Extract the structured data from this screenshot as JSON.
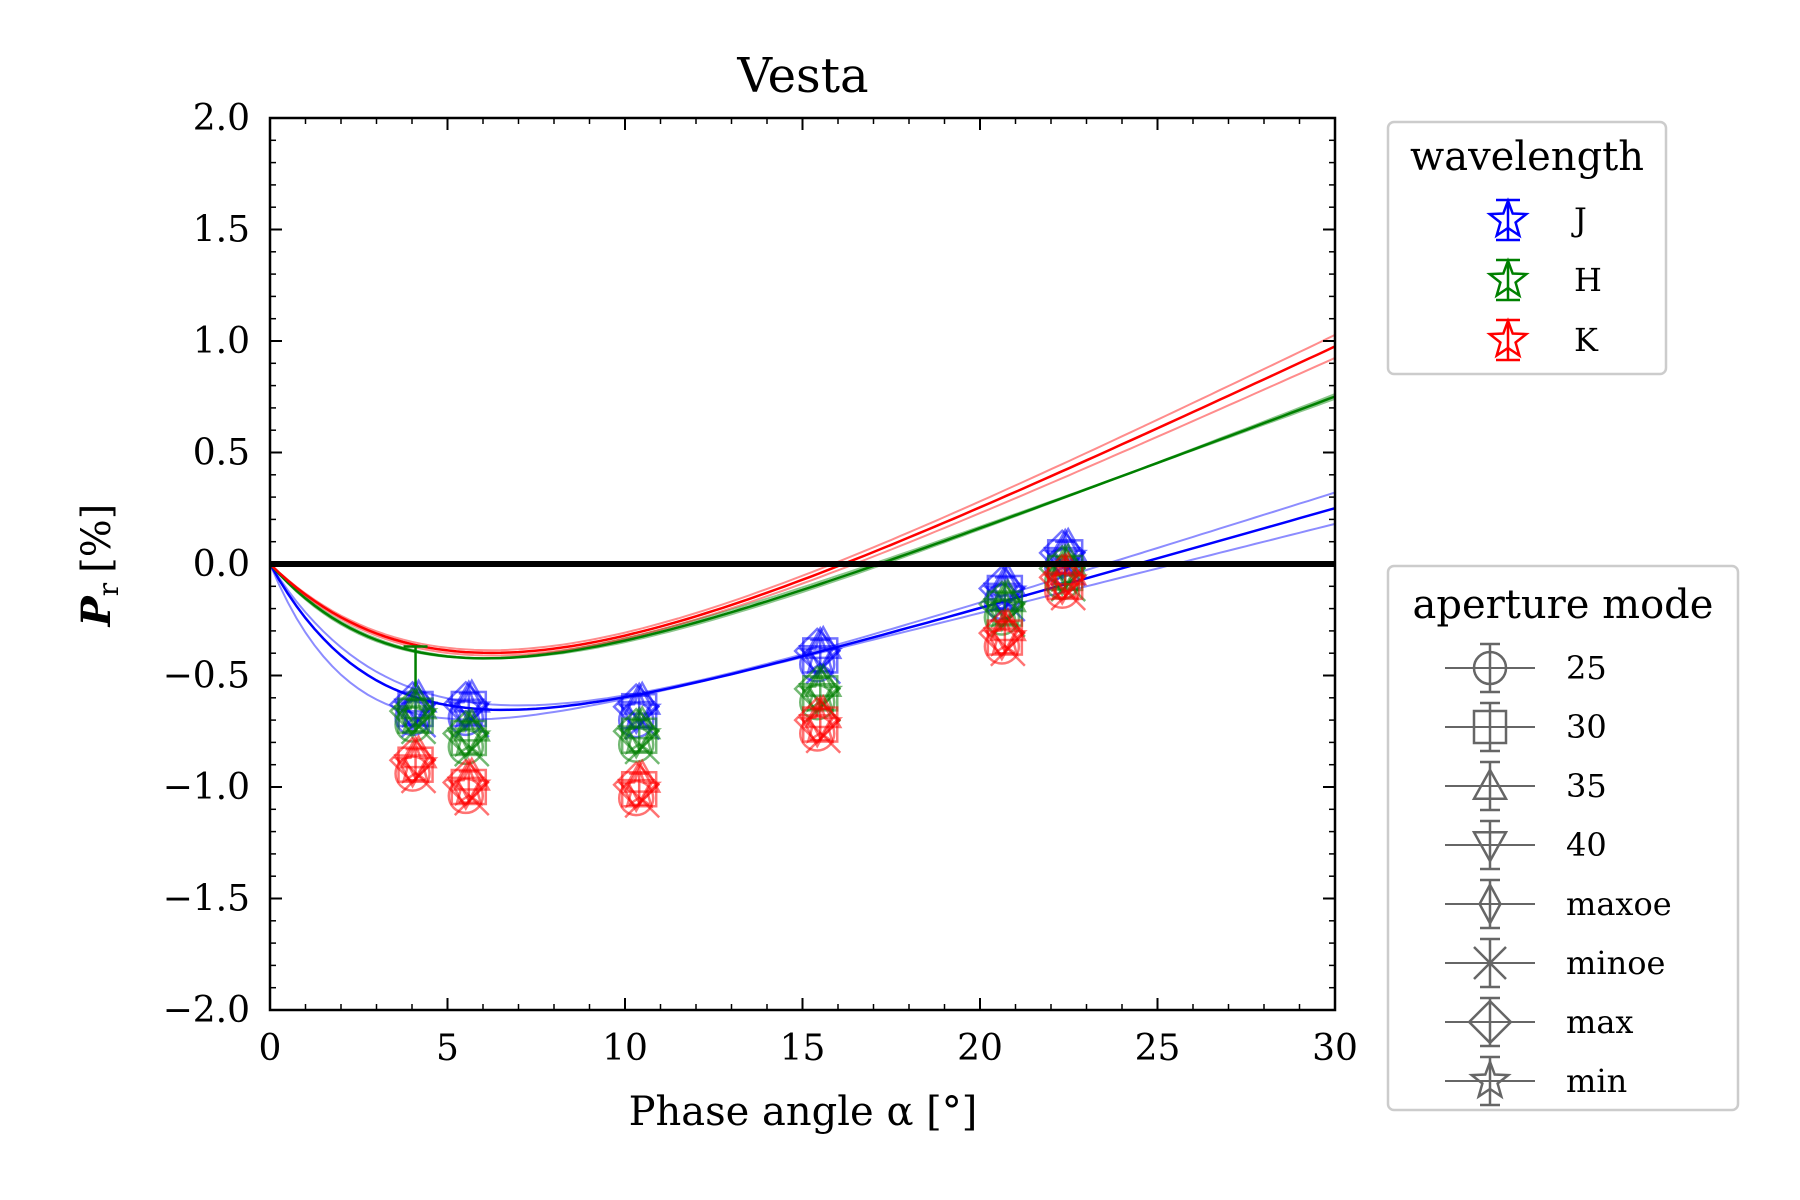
{
  "chart_data": {
    "type": "scatter",
    "title": "Vesta",
    "xlabel": "Phase angle α [°]",
    "ylabel_main": "P",
    "ylabel_sub": "r",
    "ylabel_unit": "[%]",
    "xlim": [
      0,
      30
    ],
    "ylim": [
      -2.0,
      2.0
    ],
    "xticks": [
      0,
      5,
      10,
      15,
      20,
      25,
      30
    ],
    "xtick_labels": [
      "0",
      "5",
      "10",
      "15",
      "20",
      "25",
      "30"
    ],
    "yticks": [
      -2.0,
      -1.5,
      -1.0,
      -0.5,
      0.0,
      0.5,
      1.0,
      1.5,
      2.0
    ],
    "ytick_labels": [
      "−2.0",
      "−1.5",
      "−1.0",
      "−0.5",
      "0.0",
      "0.5",
      "1.0",
      "1.5",
      "2.0"
    ],
    "zero_line": 0.0,
    "grid": false,
    "legend_wavelength": {
      "title": "wavelength",
      "position": "upper-right-outside",
      "entries": [
        {
          "label": "J",
          "color": "#0000ff"
        },
        {
          "label": "H",
          "color": "#008000"
        },
        {
          "label": "K",
          "color": "#ff0000"
        }
      ]
    },
    "legend_aperture": {
      "title": "aperture mode",
      "position": "lower-right-outside",
      "entries": [
        {
          "label": "25",
          "marker": "circle"
        },
        {
          "label": "30",
          "marker": "square"
        },
        {
          "label": "35",
          "marker": "triangle-up"
        },
        {
          "label": "40",
          "marker": "triangle-down"
        },
        {
          "label": "maxoe",
          "marker": "thin-diamond"
        },
        {
          "label": "minoe",
          "marker": "x"
        },
        {
          "label": "max",
          "marker": "diamond"
        },
        {
          "label": "min",
          "marker": "star"
        }
      ]
    },
    "series": [
      {
        "name": "J",
        "color": "#0000ff",
        "x": [
          4.1,
          5.6,
          10.4,
          15.5,
          20.7,
          22.4
        ],
        "y": [
          -0.65,
          -0.65,
          -0.66,
          -0.41,
          -0.13,
          0.03
        ],
        "fit": {
          "b": 1.1,
          "c1": 0.055,
          "c2": 0.045
        },
        "fit_variants": [
          {
            "b": 1.02,
            "c1": 0.04,
            "c2": 0.04
          },
          {
            "b": 1.18,
            "c1": 0.065,
            "c2": 0.05
          }
        ]
      },
      {
        "name": "H",
        "color": "#008000",
        "x": [
          4.1,
          5.6,
          10.4,
          15.5,
          20.7,
          22.4
        ],
        "y": [
          -0.68,
          -0.78,
          -0.77,
          -0.58,
          -0.2,
          -0.04
        ],
        "fit": {
          "b": 1.05,
          "c1": 0.073,
          "c2": 0.06
        },
        "fit_variants": [
          {
            "b": 1.0,
            "c1": 0.068,
            "c2": 0.058
          },
          {
            "b": 1.1,
            "c1": 0.078,
            "c2": 0.062
          }
        ]
      },
      {
        "name": "K",
        "color": "#ff0000",
        "x": [
          4.1,
          5.6,
          10.4,
          15.5,
          20.7,
          22.4
        ],
        "y": [
          -0.9,
          -1.0,
          -1.01,
          -0.72,
          -0.33,
          -0.08
        ],
        "fit": {
          "b": 1.28,
          "c1": 0.092,
          "c2": 0.075
        },
        "fit_variants": [
          {
            "b": 1.24,
            "c1": 0.088,
            "c2": 0.072
          },
          {
            "b": 1.32,
            "c1": 0.096,
            "c2": 0.078
          }
        ]
      }
    ]
  }
}
